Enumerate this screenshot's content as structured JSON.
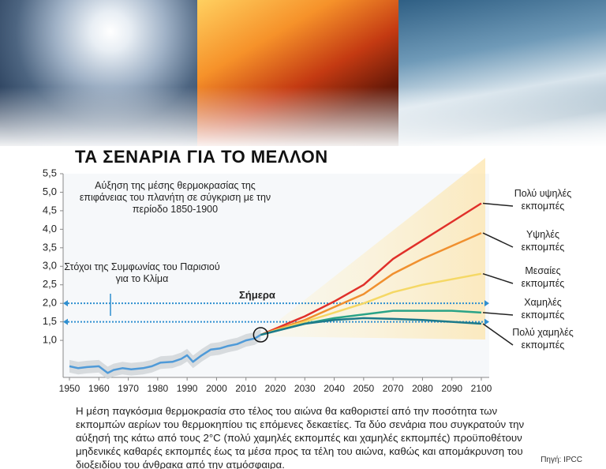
{
  "chart_data": {
    "type": "line",
    "title": "ΤΑ ΣΕΝΑΡΙΑ ΓΙΑ ΤΟ ΜΕΛΛΟΝ",
    "annotation": "Αύξηση της μέσης θερμοκρασίας της επιφάνειας του πλανήτη σε σύγκριση με την περίοδο 1850-1900",
    "paris_label": "Στόχοι της Συμφωνίας του Παρισιού για το Κλίμα",
    "today_label": "Σήμερα",
    "reference_lines": [
      2.0,
      1.5
    ],
    "reference_color": "#2f8fd0",
    "xlim": [
      1950,
      2100
    ],
    "xticks": [
      1950,
      1960,
      1970,
      1980,
      1990,
      2000,
      2010,
      2020,
      2030,
      2040,
      2050,
      2070,
      2080,
      2090,
      2100
    ],
    "ylim": [
      0,
      5.5
    ],
    "yticks": [
      {
        "value": 1.0,
        "label": "1,0"
      },
      {
        "value": 1.5,
        "label": "1,5"
      },
      {
        "value": 2.0,
        "label": "2,0"
      },
      {
        "value": 2.5,
        "label": "2,5"
      },
      {
        "value": 3.0,
        "label": "3,0"
      },
      {
        "value": 3.5,
        "label": "3,5"
      },
      {
        "value": 4.0,
        "label": "4,0"
      },
      {
        "value": 4.5,
        "label": "4,5"
      },
      {
        "value": 5.0,
        "label": "5,0"
      },
      {
        "value": 5.5,
        "label": "5,5"
      }
    ],
    "historical": {
      "color": "#4f9ad8",
      "x": [
        1950,
        1953,
        1956,
        1960,
        1963,
        1965,
        1968,
        1971,
        1975,
        1978,
        1981,
        1985,
        1988,
        1990,
        1992,
        1995,
        1998,
        2001,
        2004,
        2007,
        2010,
        2013,
        2015
      ],
      "values": [
        0.3,
        0.25,
        0.28,
        0.3,
        0.12,
        0.2,
        0.25,
        0.22,
        0.25,
        0.3,
        0.4,
        0.42,
        0.5,
        0.6,
        0.42,
        0.6,
        0.75,
        0.78,
        0.85,
        0.9,
        1.0,
        1.05,
        1.15
      ]
    },
    "x": [
      2015,
      2030,
      2040,
      2050,
      2070,
      2080,
      2090,
      2100
    ],
    "series": [
      {
        "name": "Πολύ υψηλές εκπομπές",
        "color": "#e0302a",
        "values": [
          1.15,
          1.65,
          2.05,
          2.5,
          3.2,
          3.7,
          4.2,
          4.7
        ]
      },
      {
        "name": "Υψηλές εκπομπές",
        "color": "#f0902f",
        "values": [
          1.15,
          1.55,
          1.9,
          2.25,
          2.8,
          3.2,
          3.55,
          3.9
        ]
      },
      {
        "name": "Μεσαίες εκπομπές",
        "color": "#f5d865",
        "values": [
          1.15,
          1.5,
          1.75,
          2.0,
          2.3,
          2.5,
          2.65,
          2.8
        ]
      },
      {
        "name": "Χαμηλές εκπομπές",
        "color": "#2aa387",
        "values": [
          1.15,
          1.45,
          1.6,
          1.7,
          1.8,
          1.8,
          1.8,
          1.75
        ]
      },
      {
        "name": "Πολύ χαμηλές εκπομπές",
        "color": "#1d7a8a",
        "values": [
          1.15,
          1.45,
          1.55,
          1.6,
          1.58,
          1.55,
          1.5,
          1.45
        ]
      }
    ]
  },
  "footer": "Η μέση παγκόσμια θερμοκρασία στο τέλος του αιώνα θα καθοριστεί από την ποσότητα των εκπομπών αερίων του θερμοκηπίου τις επόμενες δεκαετίες. Τα δύο σενάρια που συγκρατούν την αύξησή της κάτω από τους 2°C (πολύ χαμηλές εκπομπές και χαμηλές εκπομπές) προϋποθέτουν μηδενικές καθαρές εκπομπές έως τα μέσα προς τα τέλη του αιώνα, καθώς και απομάκρυνση του διοξειδίου του άνθρακα από την ατμόσφαιρα.",
  "source": "Πηγή: IPCC"
}
